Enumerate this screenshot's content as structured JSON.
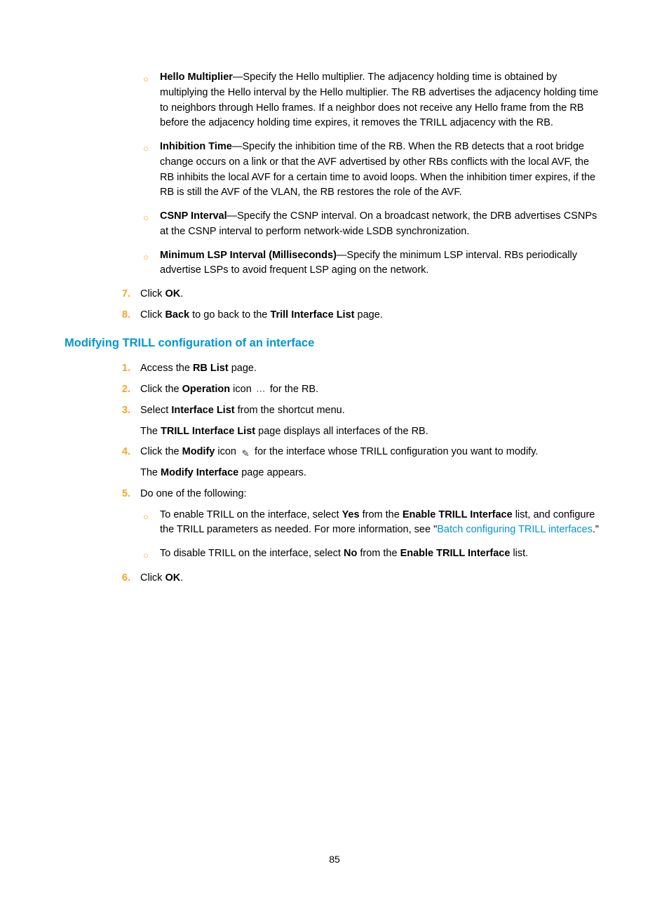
{
  "colors": {
    "accent": "#f5a623",
    "link": "#0096d6",
    "text": "#000000",
    "background": "#ffffff"
  },
  "typography": {
    "body_fontsize": 14.5,
    "heading_fontsize": 16.5,
    "font_family": "Arial"
  },
  "pageNumber": "85",
  "topBullets": [
    {
      "term": "Hello Multiplier",
      "dash": "—",
      "desc": "Specify the Hello multiplier. The adjacency holding time is obtained by multiplying the Hello interval by the Hello multiplier. The RB advertises the adjacency holding time to neighbors through Hello frames. If a neighbor does not receive any Hello frame from the RB before the adjacency holding time expires, it removes the TRILL adjacency with the RB."
    },
    {
      "term": "Inhibition Time",
      "dash": "—",
      "desc": "Specify the inhibition time of the RB. When the RB detects that a root bridge change occurs on a link or that the AVF advertised by other RBs conflicts with the local AVF, the RB inhibits the local AVF for a certain time to avoid loops. When the inhibition timer expires, if the RB is still the AVF of the VLAN, the RB restores the role of the AVF."
    },
    {
      "term": "CSNP Interval",
      "dash": "—",
      "desc": "Specify the CSNP interval. On a broadcast network, the DRB advertises CSNPs at the CSNP interval to perform network-wide LSDB synchronization."
    },
    {
      "term": "Minimum LSP Interval (Milliseconds)",
      "dash": "—",
      "desc": "Specify the minimum LSP interval. RBs periodically advertise LSPs to avoid frequent LSP aging on the network."
    }
  ],
  "step7": {
    "num": "7.",
    "pre": "Click ",
    "bold": "OK",
    "post": "."
  },
  "step8": {
    "num": "8.",
    "pre": "Click ",
    "b1": "Back",
    "mid": " to go back to the ",
    "b2": "Trill Interface List",
    "post": " page."
  },
  "heading": "Modifying TRILL configuration of an interface",
  "s1": {
    "num": "1.",
    "pre": "Access the ",
    "b": "RB List",
    "post": " page."
  },
  "s2": {
    "num": "2.",
    "pre": "Click the ",
    "b": "Operation",
    "mid": " icon ",
    "icon": "⋯",
    "post": " for the RB."
  },
  "s3": {
    "num": "3.",
    "pre": "Select ",
    "b": "Interface List",
    "post": " from the shortcut menu."
  },
  "s3f": {
    "pre": "The ",
    "b": "TRILL Interface List",
    "post": " page displays all interfaces of the RB."
  },
  "s4": {
    "num": "4.",
    "pre": "Click the ",
    "b": "Modify",
    "mid": " icon ",
    "icon": "✎",
    "post": " for the interface whose TRILL configuration you want to modify."
  },
  "s4f": {
    "pre": "The ",
    "b": "Modify Interface",
    "post": " page appears."
  },
  "s5": {
    "num": "5.",
    "text": "Do one of the following:"
  },
  "s5a": {
    "pre": "To enable TRILL on the interface, select ",
    "b1": "Yes",
    "mid1": " from the ",
    "b2": "Enable TRILL Interface",
    "mid2": " list, and configure the TRILL parameters as needed. For more information, see \"",
    "link": "Batch configuring TRILL interfaces",
    "post": ".\""
  },
  "s5b": {
    "pre": "To disable TRILL on the interface, select ",
    "b1": "No",
    "mid": " from the ",
    "b2": "Enable TRILL Interface",
    "post": " list."
  },
  "s6": {
    "num": "6.",
    "pre": "Click ",
    "b": "OK",
    "post": "."
  }
}
